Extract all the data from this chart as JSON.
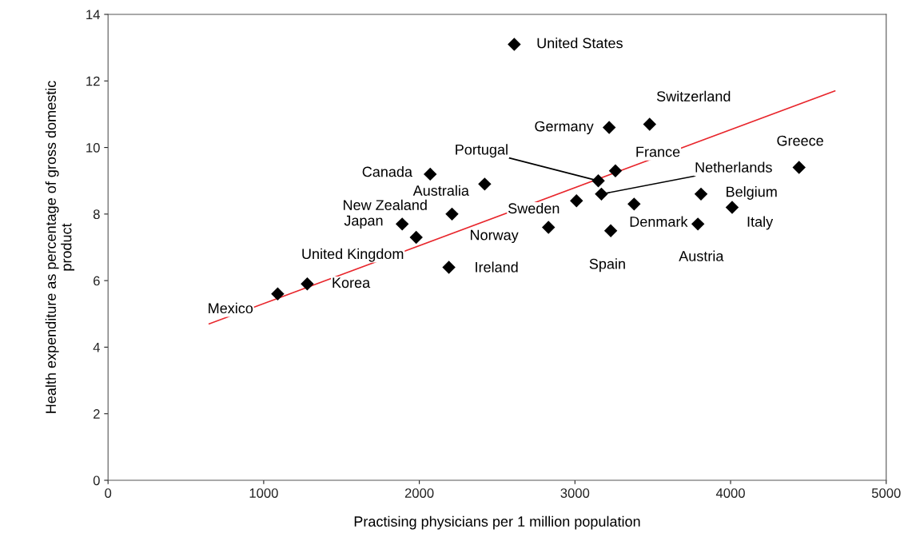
{
  "chart_data": {
    "type": "scatter",
    "xlabel": "Practising physicians per 1 million population",
    "ylabel": "Health expenditure as percentage of gross domestic\nproduct",
    "xlim": [
      0,
      5000
    ],
    "xticks": [
      0,
      1000,
      2000,
      3000,
      4000,
      5000
    ],
    "ylim": [
      0,
      14
    ],
    "yticks": [
      0,
      2,
      4,
      6,
      8,
      10,
      12,
      14
    ],
    "grid": false,
    "series": [
      {
        "marker": "diamond",
        "color": "#000000",
        "x": [
          2610,
          3220,
          3480,
          3150,
          3260,
          3170,
          3010,
          3380,
          2830,
          3230,
          3810,
          3790,
          4010,
          4440,
          2070,
          2420,
          2210,
          1890,
          1980,
          2190,
          1280,
          1090
        ],
        "values": [
          13.1,
          10.6,
          10.7,
          9.0,
          9.3,
          8.6,
          8.4,
          8.3,
          7.6,
          7.5,
          8.6,
          7.7,
          8.2,
          9.4,
          9.2,
          8.9,
          8.0,
          7.7,
          7.3,
          6.4,
          5.9,
          5.6
        ]
      },
      {
        "type": "line",
        "color": "#e8262c",
        "x": [
          650,
          4670
        ],
        "values": [
          4.7,
          11.7
        ]
      }
    ],
    "annotations": [
      {
        "text": "United States",
        "x": 2610,
        "y": 13.1
      },
      {
        "text": "Germany",
        "x": 3220,
        "y": 10.6
      },
      {
        "text": "Switzerland",
        "x": 3480,
        "y": 10.7
      },
      {
        "text": "Portugal",
        "x": 3150,
        "y": 9.0
      },
      {
        "text": "France",
        "x": 3260,
        "y": 9.3
      },
      {
        "text": "Netherlands",
        "x": 3170,
        "y": 8.6
      },
      {
        "text": "Sweden",
        "x": 3010,
        "y": 8.4
      },
      {
        "text": "Denmark",
        "x": 3380,
        "y": 8.3
      },
      {
        "text": "Norway",
        "x": 2830,
        "y": 7.6
      },
      {
        "text": "Spain",
        "x": 3230,
        "y": 7.5
      },
      {
        "text": "Belgium",
        "x": 3810,
        "y": 8.6
      },
      {
        "text": "Austria",
        "x": 3790,
        "y": 7.7
      },
      {
        "text": "Italy",
        "x": 4010,
        "y": 8.2
      },
      {
        "text": "Greece",
        "x": 4440,
        "y": 9.4
      },
      {
        "text": "Canada",
        "x": 2070,
        "y": 9.2
      },
      {
        "text": "Australia",
        "x": 2420,
        "y": 8.9
      },
      {
        "text": "New Zealand",
        "x": 2210,
        "y": 8.0
      },
      {
        "text": "Japan",
        "x": 1890,
        "y": 7.7
      },
      {
        "text": "United Kingdom",
        "x": 1980,
        "y": 7.3
      },
      {
        "text": "Ireland",
        "x": 2190,
        "y": 6.4
      },
      {
        "text": "Korea",
        "x": 1280,
        "y": 5.9
      },
      {
        "text": "Mexico",
        "x": 1090,
        "y": 5.6
      }
    ]
  }
}
